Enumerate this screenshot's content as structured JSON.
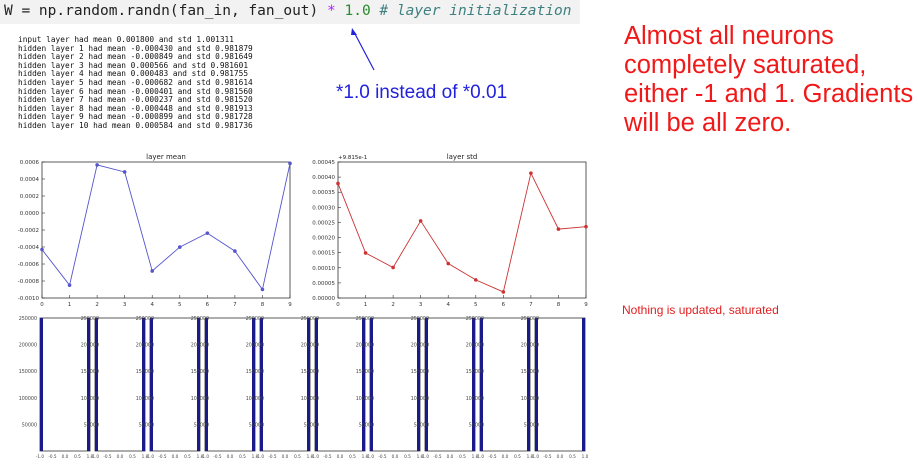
{
  "code_line": {
    "lhs": "W = np.random.randn(fan_in, fan_out) ",
    "op": "*",
    "num": " 1.0 ",
    "comment": "# layer initialization"
  },
  "console_lines": [
    "input layer had mean 0.001800 and std 1.001311",
    "hidden layer 1 had mean -0.000430 and std 0.981879",
    "hidden layer 2 had mean -0.000849 and std 0.981649",
    "hidden layer 3 had mean 0.000566 and std 0.981601",
    "hidden layer 4 had mean 0.000483 and std 0.981755",
    "hidden layer 5 had mean -0.000682 and std 0.981614",
    "hidden layer 6 had mean -0.000401 and std 0.981560",
    "hidden layer 7 had mean -0.000237 and std 0.981520",
    "hidden layer 8 had mean -0.000448 and std 0.981913",
    "hidden layer 9 had mean -0.000899 and std 0.981728",
    "hidden layer 10 had mean 0.000584 and std 0.981736"
  ],
  "annotations": {
    "blue": "*1.0 instead of *0.01",
    "red": "Almost all neurons completely saturated, either -1 and 1. Gradients will be all zero.",
    "small": "Nothing is updated, saturated"
  },
  "colors": {
    "mean_line": "#5555cc",
    "std_line": "#cc3333",
    "hist_bar": "#1a1a8a",
    "annotation_red": "#f01818",
    "annotation_blue": "#2222dd"
  },
  "chart_data": [
    {
      "type": "line",
      "title": "layer mean",
      "x": [
        0,
        1,
        2,
        3,
        4,
        5,
        6,
        7,
        8,
        9
      ],
      "y": [
        -0.00043,
        -0.000849,
        0.000566,
        0.000483,
        -0.000682,
        -0.000401,
        -0.000237,
        -0.000448,
        -0.000899,
        0.000584
      ],
      "xlim": [
        0,
        9
      ],
      "ylim": [
        -0.001,
        0.0006
      ],
      "xticks": [
        "0",
        "1",
        "2",
        "3",
        "4",
        "5",
        "6",
        "7",
        "8",
        "9"
      ],
      "yticks": [
        "0.0006",
        "0.0004",
        "0.0002",
        "0.0000",
        "-0.0002",
        "-0.0004",
        "-0.0006",
        "-0.0008",
        "-0.0010"
      ]
    },
    {
      "type": "line",
      "title": "layer std",
      "offset_label": "+9.815e-1",
      "x": [
        0,
        1,
        2,
        3,
        4,
        5,
        6,
        7,
        8,
        9
      ],
      "y": [
        0.000379,
        0.000149,
        0.000101,
        0.000255,
        0.000114,
        6e-05,
        2e-05,
        0.000413,
        0.000228,
        0.000236
      ],
      "xlim": [
        0,
        9
      ],
      "ylim": [
        0,
        0.00045
      ],
      "xticks": [
        "0",
        "1",
        "2",
        "3",
        "4",
        "5",
        "6",
        "7",
        "8",
        "9"
      ],
      "yticks": [
        "0.00045",
        "0.00040",
        "0.00035",
        "0.00030",
        "0.00025",
        "0.00020",
        "0.00015",
        "0.00010",
        "0.00005",
        "0.00000"
      ]
    },
    {
      "type": "bar",
      "title": "",
      "panels": 10,
      "bin_edges_x": [
        -1.0,
        -0.5,
        0.0,
        0.5,
        1.0
      ],
      "bars": [
        {
          "x": -1.0,
          "count": 250000
        },
        {
          "x": 1.0,
          "count": 250000
        }
      ],
      "ylim": [
        0,
        250000
      ],
      "yticks": [
        "250000",
        "200000",
        "150000",
        "100000",
        "50000",
        "0"
      ],
      "xticks": [
        "-1.0",
        "-0.5",
        "0.0",
        "0.5",
        "1.0"
      ]
    }
  ]
}
